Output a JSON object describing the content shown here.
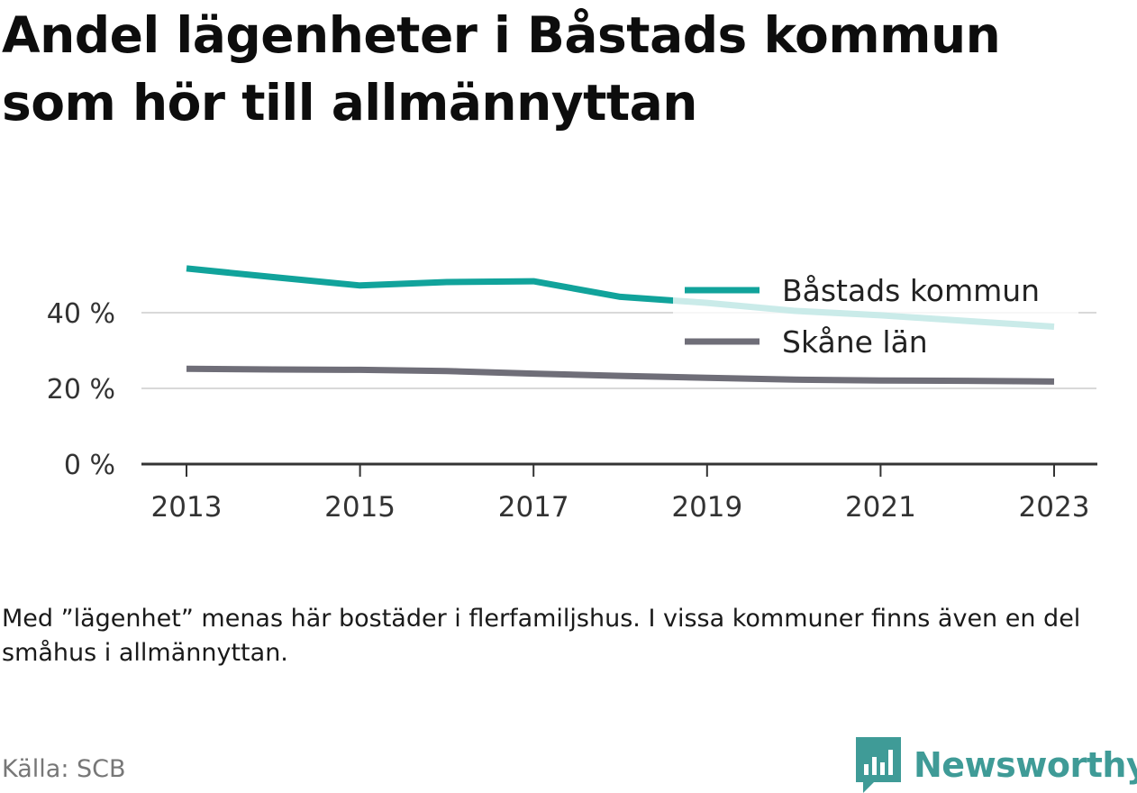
{
  "title": "Andel lägenheter i Båstads kommun som hör till allmännyttan",
  "note": "Med ”lägenhet” menas här bostäder i flerfamiljshus. I vissa kommuner finns även en del småhus i allmännyttan.",
  "source": "Källa: SCB",
  "brand": {
    "name": "Newsworthy",
    "icon": "newsworthy-logo-icon",
    "color": "#3f9b97"
  },
  "chart_data": {
    "type": "line",
    "x": [
      2013,
      2014,
      2015,
      2016,
      2017,
      2018,
      2019,
      2020,
      2021,
      2022,
      2023
    ],
    "x_tick_labels": [
      "2013",
      "2015",
      "2017",
      "2019",
      "2021",
      "2023"
    ],
    "y_tick_values": [
      0,
      20,
      40
    ],
    "y_tick_labels": [
      "0 %",
      "20 %",
      "40 %"
    ],
    "ylim": [
      0,
      52
    ],
    "grid": true,
    "legend_position": "top-right",
    "series": [
      {
        "name": "Båstads kommun",
        "color": "#11a39b",
        "values": [
          51.7,
          49.4,
          47.2,
          48.1,
          48.3,
          44.2,
          42.6,
          40.5,
          39.3,
          37.8,
          36.3
        ]
      },
      {
        "name": "Skåne län",
        "color": "#6f6e78",
        "values": [
          25.2,
          25.0,
          24.9,
          24.6,
          23.9,
          23.3,
          22.8,
          22.3,
          22.1,
          22.0,
          21.8
        ]
      }
    ]
  }
}
